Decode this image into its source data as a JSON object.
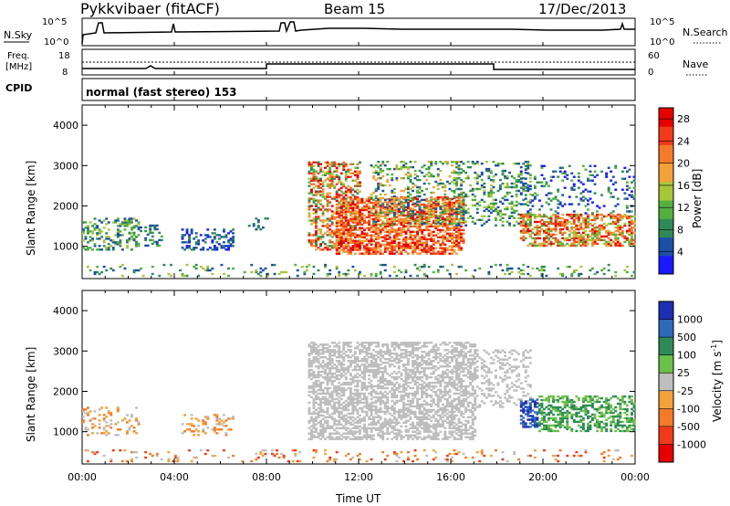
{
  "header": {
    "station": "Pykkvibaer (fitACF)",
    "beam": "Beam 15",
    "date": "17/Dec/2013"
  },
  "noise_panel": {
    "left_label": "N.Sky",
    "left_ticks": [
      "10^5",
      "10^0"
    ],
    "right_label": "N.Search",
    "right_ticks": [
      "10^5",
      "10^0"
    ]
  },
  "freq_panel": {
    "left_label_1": "Freq.",
    "left_label_2": "[MHz]",
    "left_ticks": [
      "18",
      "8"
    ],
    "right_label": "Nave",
    "right_ticks": [
      "60",
      "0"
    ]
  },
  "cpid_panel": {
    "label": "CPID",
    "mode": "normal (fast stereo) 153"
  },
  "colors": {
    "power_scale": [
      "#1a1aff",
      "#1c4fa8",
      "#2e8b57",
      "#55b040",
      "#a8c63a",
      "#f2a23a",
      "#f47a2a",
      "#f23a1a",
      "#e60000"
    ],
    "velocity_scale": [
      "#1c2fb0",
      "#2e6ab8",
      "#2e8b57",
      "#6cc04a",
      "#bebebe",
      "#f2a23a",
      "#f47a2a",
      "#f23a1a",
      "#e60000"
    ]
  },
  "chart_data": [
    {
      "type": "heatmap",
      "name": "power",
      "ylabel": "Slant Range [km]",
      "y_ticks": [
        "1000",
        "2000",
        "3000",
        "4000"
      ],
      "ylim": [
        200,
        4500
      ],
      "x_ticks": [
        "00:00",
        "04:00",
        "08:00",
        "12:00",
        "16:00",
        "20:00",
        "00:00"
      ],
      "xlim": [
        0,
        24
      ],
      "colorbar_label": "Power [dB]",
      "colorbar_ticks": [
        "4",
        "8",
        "12",
        "16",
        "20",
        "24",
        "28"
      ],
      "colorbar_range": [
        0,
        30
      ]
    },
    {
      "type": "heatmap",
      "name": "velocity",
      "ylabel": "Slant Range [km]",
      "y_ticks": [
        "1000",
        "2000",
        "3000",
        "4000"
      ],
      "ylim": [
        200,
        4500
      ],
      "x_ticks": [
        "00:00",
        "04:00",
        "08:00",
        "12:00",
        "16:00",
        "20:00",
        "00:00"
      ],
      "xlim": [
        0,
        24
      ],
      "xlabel": "Time UT",
      "colorbar_label": "Velocity [m s",
      "colorbar_label_sup": "-1",
      "colorbar_label_end": "]",
      "colorbar_ticks": [
        "1000",
        "500",
        "100",
        "25",
        "-25",
        "-100",
        "-500",
        "-1000"
      ]
    }
  ]
}
